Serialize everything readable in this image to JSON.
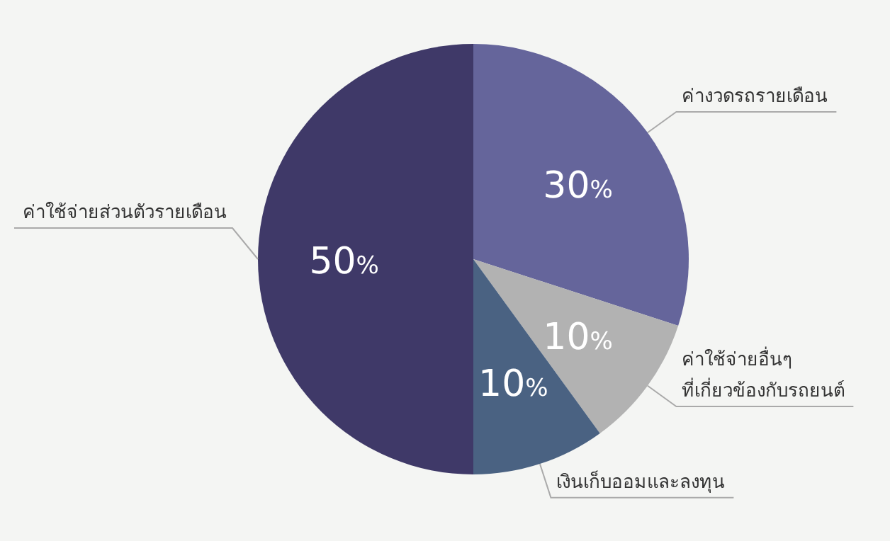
{
  "chart_data": {
    "type": "pie",
    "categories": [
      "ค่างวดรถรายเดือน",
      "ค่าใช้จ่ายอื่นๆ\nที่เกี่ยวข้องกับรถยนต์",
      "เงินเก็บออมและลงทุน",
      "ค่าใช้จ่ายส่วนตัวรายเดือน"
    ],
    "values": [
      30,
      10,
      10,
      50
    ],
    "colors": [
      "#65659b",
      "#b2b2b2",
      "#4a6282",
      "#3f3968"
    ],
    "value_labels": [
      "30%",
      "10%",
      "10%",
      "50%"
    ]
  }
}
